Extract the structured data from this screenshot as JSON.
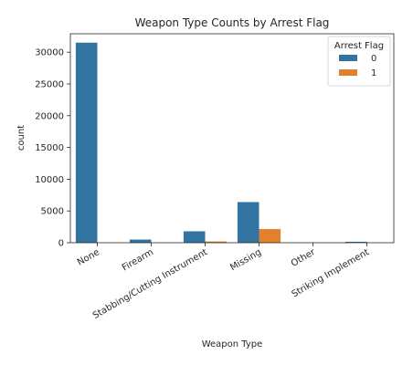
{
  "chart_data": {
    "type": "bar",
    "title": "Weapon Type Counts by Arrest Flag",
    "xlabel": "Weapon Type",
    "ylabel": "count",
    "categories": [
      "None",
      "Firearm",
      "Stabbing/Cutting Instrument",
      "Missing",
      "Other",
      "Striking Implement"
    ],
    "series": [
      {
        "name": "0",
        "color": "#3274a1",
        "values": [
          31500,
          500,
          1800,
          6400,
          0,
          150
        ]
      },
      {
        "name": "1",
        "color": "#e1812c",
        "values": [
          0,
          0,
          200,
          2150,
          0,
          0
        ]
      }
    ],
    "ylim": [
      0,
      32900
    ],
    "yticks": [
      0,
      5000,
      10000,
      15000,
      20000,
      25000,
      30000
    ],
    "legend": {
      "title": "Arrest Flag",
      "position": "top-right"
    },
    "grid": false
  }
}
